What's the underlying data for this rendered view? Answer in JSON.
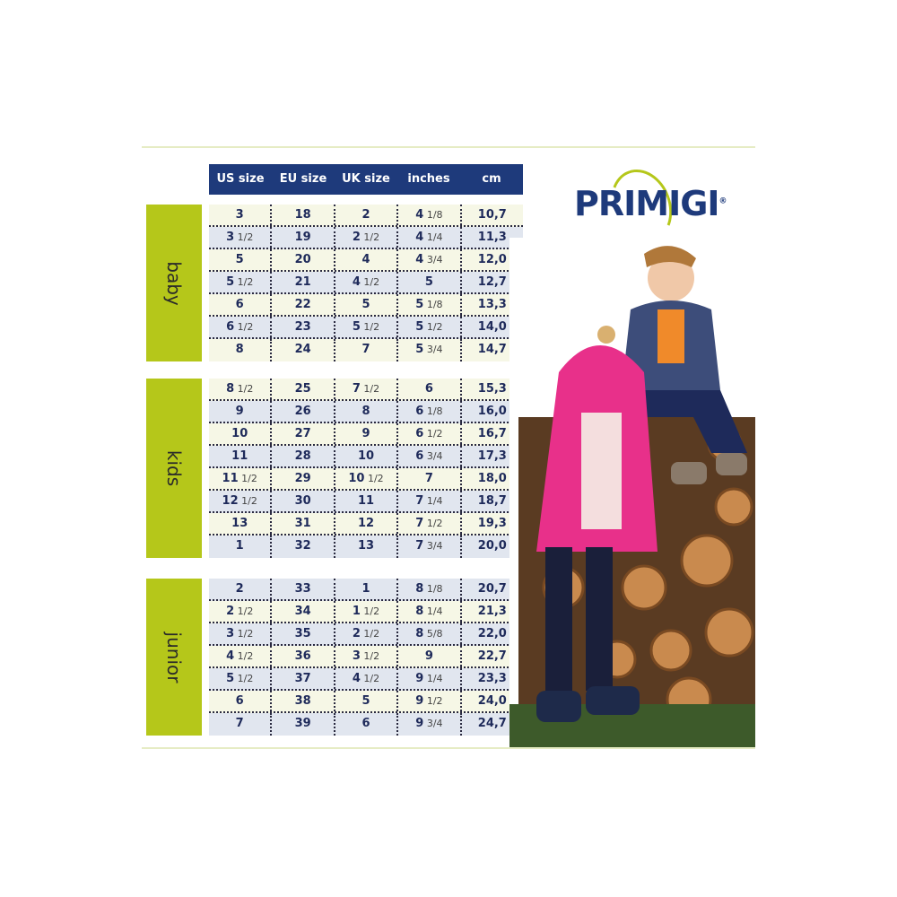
{
  "brand": {
    "logo": "PRIMIGI",
    "registered": "®"
  },
  "colors": {
    "header": "#1e3a7b",
    "label": "#b5c71a",
    "text": "#1e2a5a"
  },
  "headers": [
    "US size",
    "EU size",
    "UK size",
    "inches",
    "cm"
  ],
  "groups": [
    {
      "label": "baby",
      "first": "c",
      "rows": [
        [
          "3",
          "18",
          "2",
          "4 1/8",
          "10,7"
        ],
        [
          "3 1/2",
          "19",
          "2 1/2",
          "4 1/4",
          "11,3"
        ],
        [
          "5",
          "20",
          "4",
          "4 3/4",
          "12,0"
        ],
        [
          "5 1/2",
          "21",
          "4 1/2",
          "5",
          "12,7"
        ],
        [
          "6",
          "22",
          "5",
          "5 1/8",
          "13,3"
        ],
        [
          "6 1/2",
          "23",
          "5 1/2",
          "5 1/2",
          "14,0"
        ],
        [
          "8",
          "24",
          "7",
          "5 3/4",
          "14,7"
        ]
      ]
    },
    {
      "label": "kids",
      "first": "c",
      "rows": [
        [
          "8 1/2",
          "25",
          "7 1/2",
          "6",
          "15,3"
        ],
        [
          "9",
          "26",
          "8",
          "6 1/8",
          "16,0"
        ],
        [
          "10",
          "27",
          "9",
          "6 1/2",
          "16,7"
        ],
        [
          "11",
          "28",
          "10",
          "6 3/4",
          "17,3"
        ],
        [
          "11 1/2",
          "29",
          "10 1/2",
          "7",
          "18,0"
        ],
        [
          "12 1/2",
          "30",
          "11",
          "7 1/4",
          "18,7"
        ],
        [
          "13",
          "31",
          "12",
          "7 1/2",
          "19,3"
        ],
        [
          "1",
          "32",
          "13",
          "7 3/4",
          "20,0"
        ]
      ]
    },
    {
      "label": "junior",
      "first": "b",
      "rows": [
        [
          "2",
          "33",
          "1",
          "8 1/8",
          "20,7"
        ],
        [
          "2 1/2",
          "34",
          "1 1/2",
          "8 1/4",
          "21,3"
        ],
        [
          "3 1/2",
          "35",
          "2 1/2",
          "8 5/8",
          "22,0"
        ],
        [
          "4 1/2",
          "36",
          "3 1/2",
          "9",
          "22,7"
        ],
        [
          "5 1/2",
          "37",
          "4 1/2",
          "9 1/4",
          "23,3"
        ],
        [
          "6",
          "38",
          "5",
          "9 1/2",
          "24,0"
        ],
        [
          "7",
          "39",
          "6",
          "9 3/4",
          "24,7"
        ]
      ]
    }
  ],
  "photo": {
    "icon": "children-on-logs-photo"
  }
}
